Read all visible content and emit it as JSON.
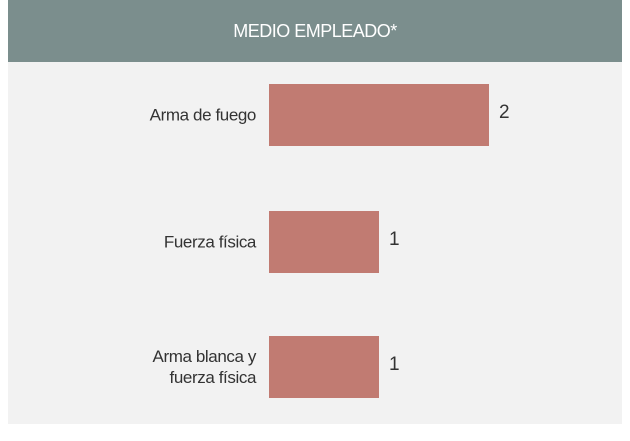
{
  "chart_data": {
    "type": "bar",
    "orientation": "horizontal",
    "title": "MEDIO EMPLEADO*",
    "categories": [
      "Arma de fuego",
      "Fuerza física",
      "Arma blanca y\nfuerza física"
    ],
    "values": [
      2,
      1,
      1
    ],
    "color": "#c17b72"
  }
}
